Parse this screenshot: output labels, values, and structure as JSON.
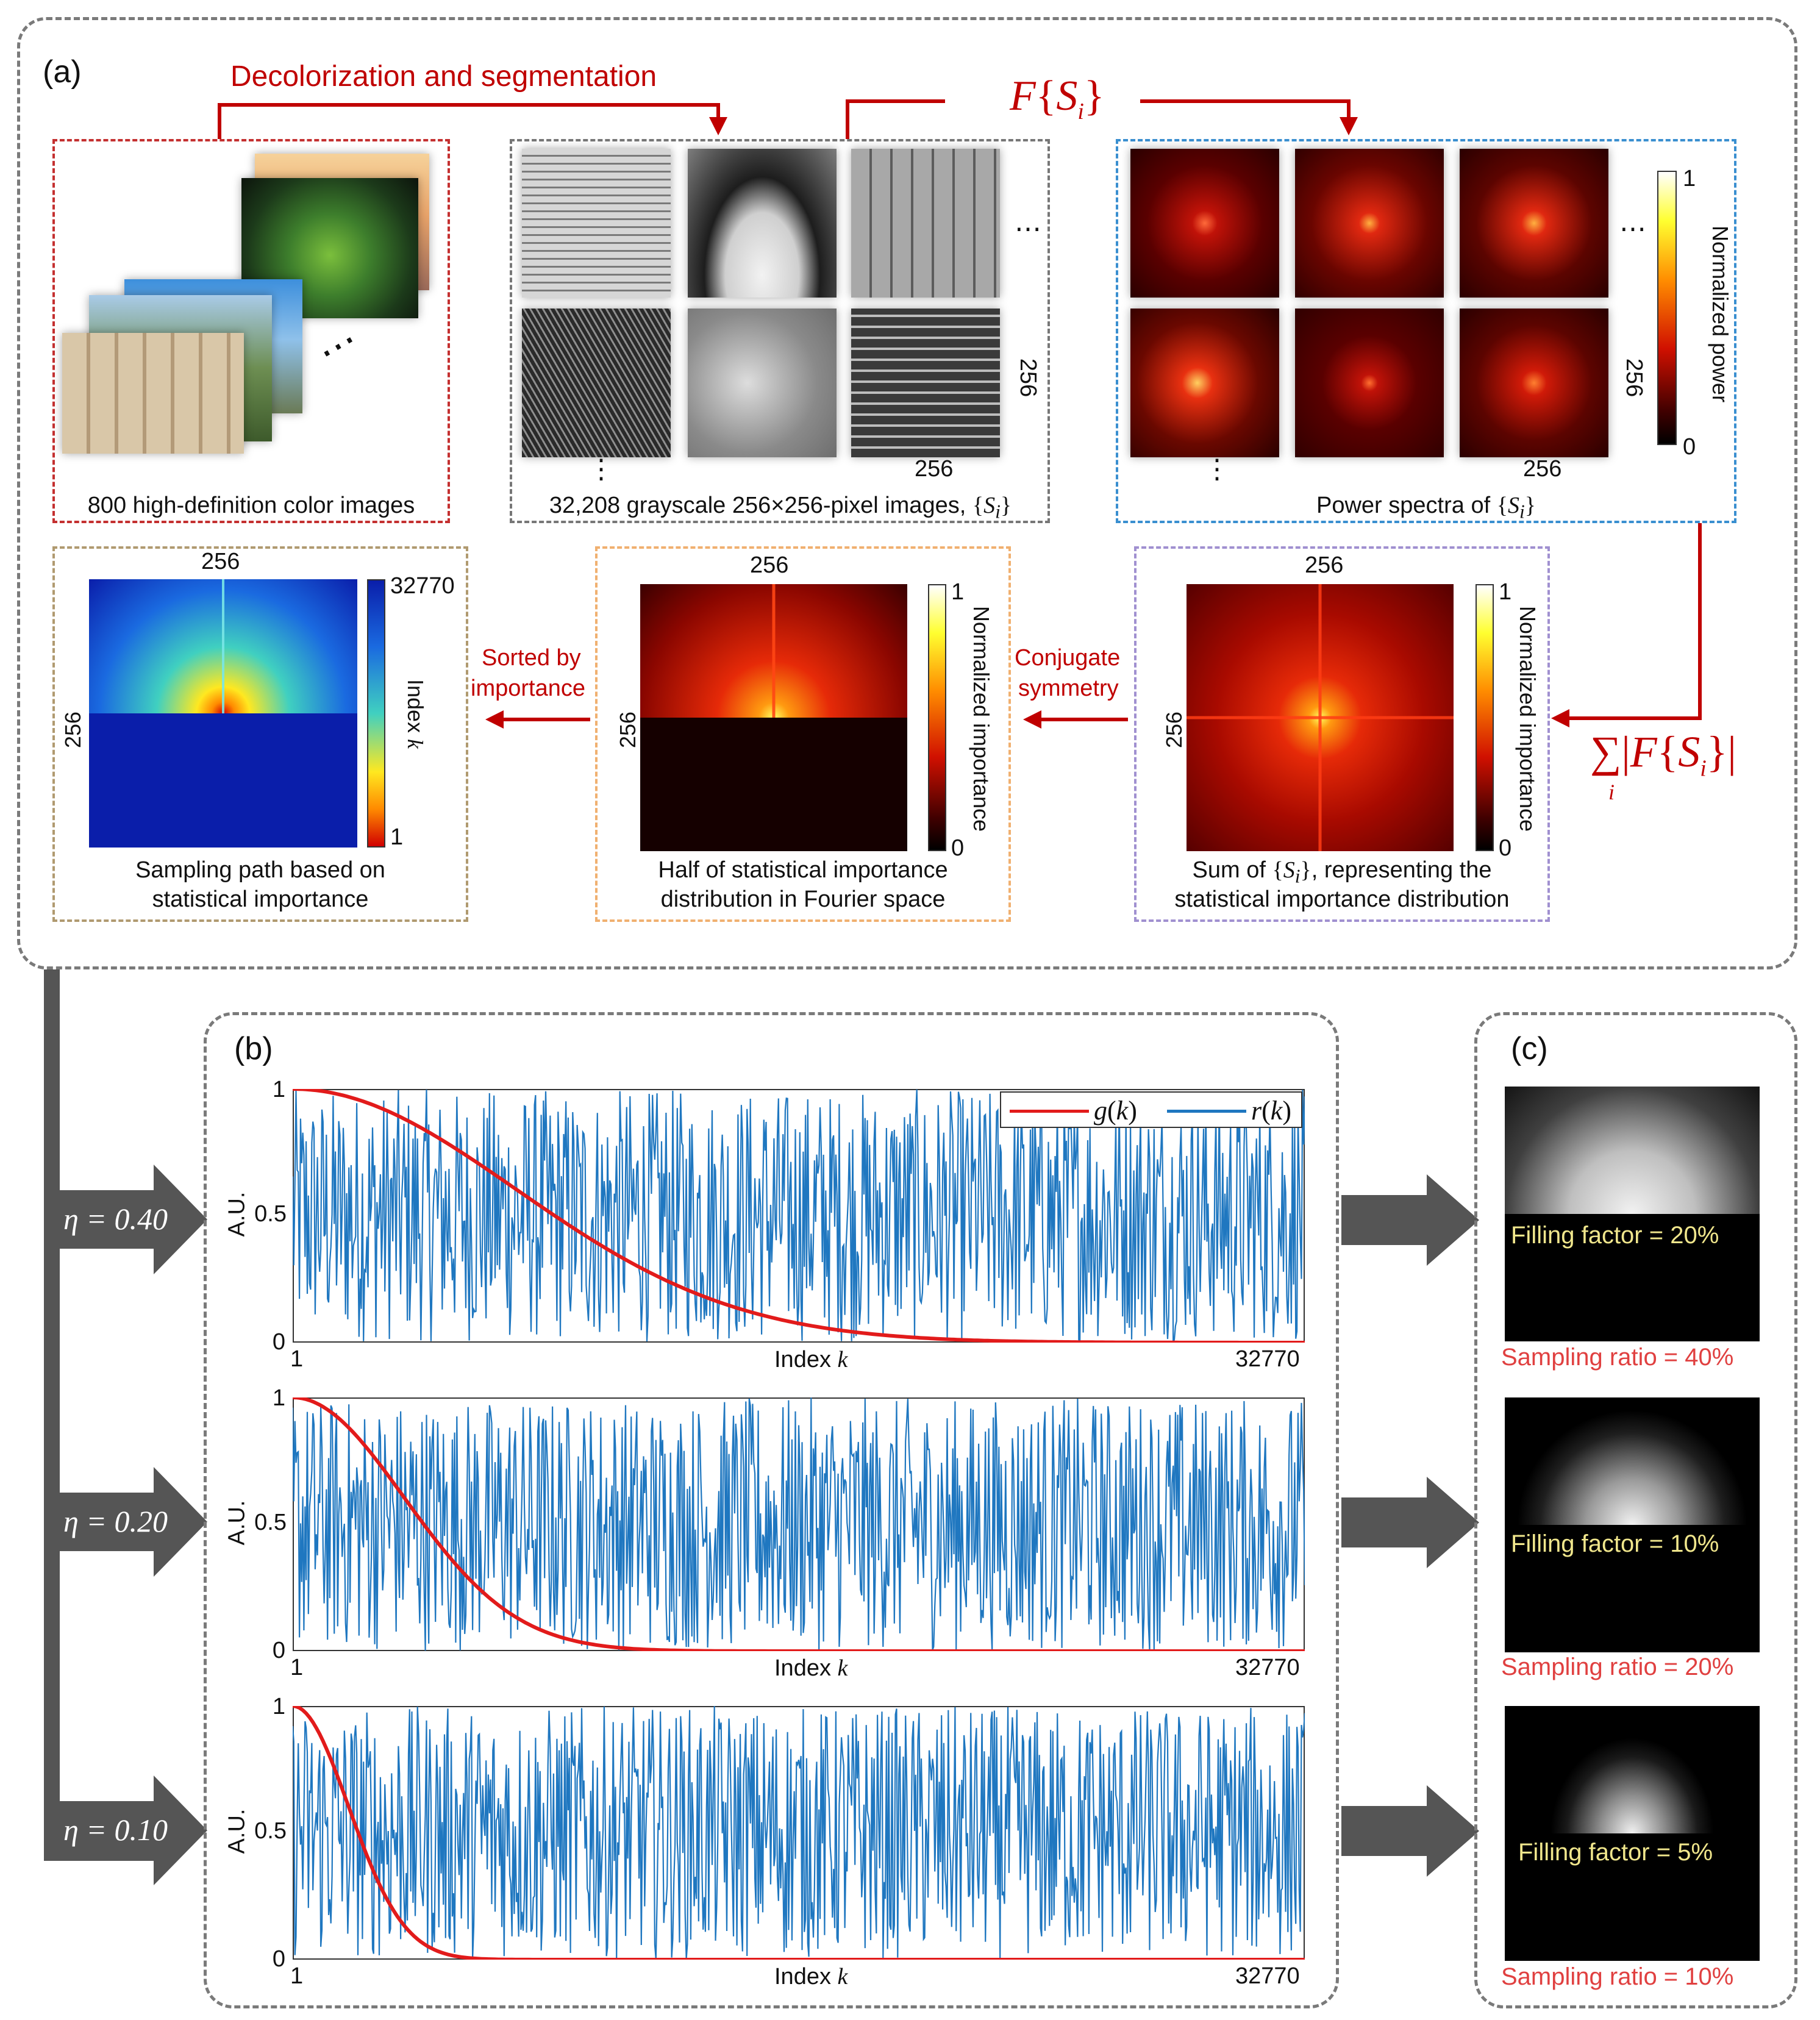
{
  "panel_a": {
    "label": "(a)",
    "step1_label": "Decolorization and segmentation",
    "fs_label": "F{S_i}",
    "box_color_caption": "800 high-definition color images",
    "box_gray_caption": "32,208 grayscale 256×256-pixel images, {S_i}",
    "box_power_caption": "Power spectra of {S_i}",
    "power_cbar_label": "Normalized power",
    "power_cbar_max": "1",
    "power_cbar_min": "0",
    "dim_256": "256",
    "ellipsis_h": "⋯",
    "ellipsis_v": "⋮",
    "sum_label": "∑|F{S_i}|",
    "sum_sub": "i",
    "sum_box_caption_1": "Sum of {S_i}, representing the",
    "sum_box_caption_2": "statistical importance distribution",
    "importance_label": "Normalized importance",
    "imp_max": "1",
    "imp_min": "0",
    "conj_label_1": "Conjugate",
    "conj_label_2": "symmetry",
    "half_caption_1": "Half of statistical importance",
    "half_caption_2": "distribution in Fourier space",
    "sorted_label_1": "Sorted by",
    "sorted_label_2": "importance",
    "index_cbar_label": "Index k",
    "index_max": "32770",
    "index_min": "1",
    "path_caption_1": "Sampling path based on",
    "path_caption_2": "statistical importance"
  },
  "panel_b": {
    "label": "(b)",
    "legend_g": "g(k)",
    "legend_r": "r(k)",
    "ylabel": "A.U.",
    "xlabel": "Index k",
    "x_min_tick": "1",
    "x_max_tick": "32770",
    "y_ticks": [
      "0",
      "0.5",
      "1"
    ],
    "etas": [
      "η = 0.40",
      "η = 0.20",
      "η = 0.10"
    ]
  },
  "panel_c": {
    "label": "(c)",
    "items": [
      {
        "filling": "Filling factor = 20%",
        "sampling": "Sampling ratio = 40%"
      },
      {
        "filling": "Filling factor = 10%",
        "sampling": "Sampling ratio = 20%"
      },
      {
        "filling": "Filling factor = 5%",
        "sampling": "Sampling ratio = 10%"
      }
    ]
  },
  "colors": {
    "red": "#c00000",
    "blue": "#1f77c0",
    "gray_arrow": "#555555",
    "caption_yellow": "#f0e68c",
    "sampling_red": "#e04040"
  },
  "chart_data": [
    {
      "type": "line",
      "eta": 0.4,
      "xlabel": "Index k",
      "ylabel": "A.U.",
      "xlim": [
        1,
        32770
      ],
      "ylim": [
        0,
        1
      ],
      "series": [
        {
          "name": "g(k)",
          "x": [
            1,
            3277,
            6554,
            9831,
            13108,
            16385,
            19662,
            22939,
            26216,
            29493,
            32770
          ],
          "values": [
            1.0,
            0.94,
            0.79,
            0.59,
            0.41,
            0.26,
            0.15,
            0.08,
            0.04,
            0.01,
            0.0
          ]
        },
        {
          "name": "r(k)",
          "note_values": "uniform random in [0,1]"
        }
      ]
    },
    {
      "type": "line",
      "eta": 0.2,
      "xlabel": "Index k",
      "ylabel": "A.U.",
      "xlim": [
        1,
        32770
      ],
      "ylim": [
        0,
        1
      ],
      "series": [
        {
          "name": "g(k)",
          "x": [
            1,
            3277,
            6554,
            9831,
            13108,
            16385,
            19662,
            22939,
            26216,
            29493,
            32770
          ],
          "values": [
            1.0,
            0.79,
            0.41,
            0.15,
            0.04,
            0.01,
            0.0,
            0.0,
            0.0,
            0.0,
            0.0
          ]
        },
        {
          "name": "r(k)"
        }
      ]
    },
    {
      "type": "line",
      "eta": 0.1,
      "xlabel": "Index k",
      "ylabel": "A.U.",
      "xlim": [
        1,
        32770
      ],
      "ylim": [
        0,
        1
      ],
      "series": [
        {
          "name": "g(k)",
          "x": [
            1,
            3277,
            6554,
            9831,
            13108,
            16385,
            19662,
            22939,
            26216,
            29493,
            32770
          ],
          "values": [
            1.0,
            0.41,
            0.04,
            0.0,
            0.0,
            0.0,
            0.0,
            0.0,
            0.0,
            0.0,
            0.0
          ]
        },
        {
          "name": "r(k)"
        }
      ]
    }
  ]
}
